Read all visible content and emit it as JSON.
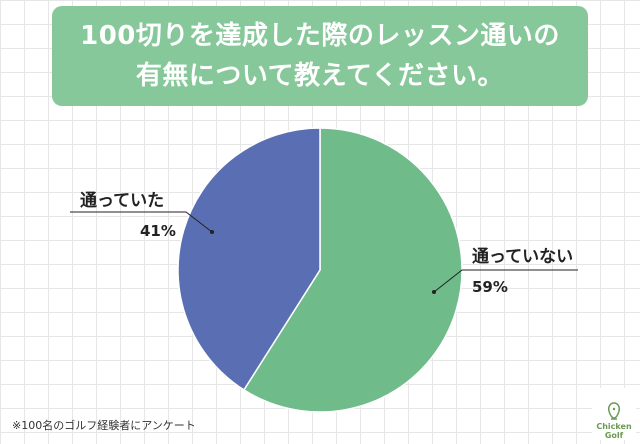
{
  "title": {
    "line1": "100切りを達成した際のレッスン通いの",
    "line2": "有無について教えてください。"
  },
  "chart_data": {
    "type": "pie",
    "title": "100切りを達成した際のレッスン通いの有無について教えてください。",
    "slices": [
      {
        "label": "通っていない",
        "value": 59,
        "value_label": "59%",
        "color": "#6fbb8a"
      },
      {
        "label": "通っていた",
        "value": 41,
        "value_label": "41%",
        "color": "#5a6fb3"
      }
    ],
    "start_angle_deg": 0,
    "direction": "clockwise"
  },
  "footnote": "※100名のゴルフ経験者にアンケート",
  "logo": {
    "line1": "Chicken",
    "line2": "Golf",
    "icon": "chicken-golf-logo-icon"
  }
}
